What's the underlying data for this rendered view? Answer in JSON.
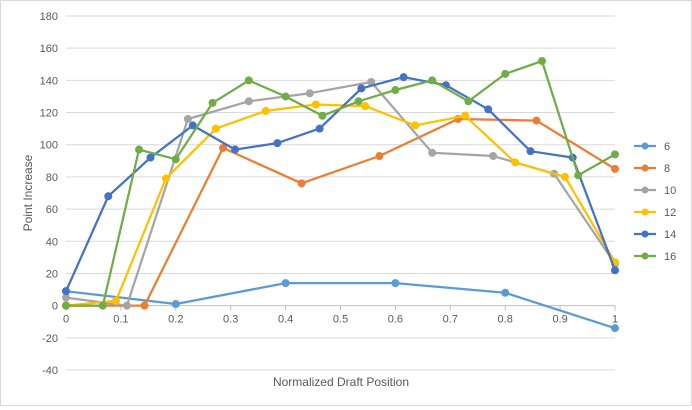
{
  "chart_data": {
    "type": "line",
    "title": "",
    "xlabel": "Normalized Draft Position",
    "ylabel": "Point Increase",
    "xlim": [
      0,
      1
    ],
    "ylim": [
      -40,
      180
    ],
    "x_ticks": [
      0,
      0.1,
      0.2,
      0.3,
      0.4,
      0.5,
      0.6,
      0.7,
      0.8,
      0.9,
      1
    ],
    "x_tick_labels": [
      "0",
      "0.1",
      "0.2",
      "0.3",
      "0.4",
      "0.5",
      "0.6",
      "0.7",
      "0.8",
      "0.9",
      "1"
    ],
    "y_ticks": [
      -40,
      -20,
      0,
      20,
      40,
      60,
      80,
      100,
      120,
      140,
      160,
      180
    ],
    "y_tick_labels": [
      "-40",
      "-20",
      "0",
      "20",
      "40",
      "60",
      "80",
      "100",
      "120",
      "140",
      "160",
      "180"
    ],
    "grid": "horizontal",
    "legend_position": "right",
    "series": [
      {
        "name": "6",
        "color": "#5B9BD5",
        "x": [
          0,
          0.2,
          0.4,
          0.6,
          0.8,
          1
        ],
        "y": [
          9,
          1,
          14,
          14,
          8,
          -14
        ]
      },
      {
        "name": "8",
        "color": "#ED7D31",
        "x": [
          0,
          0.143,
          0.286,
          0.429,
          0.571,
          0.714,
          0.857,
          1
        ],
        "y": [
          0,
          0,
          98,
          76,
          93,
          116,
          115,
          85
        ]
      },
      {
        "name": "10",
        "color": "#A5A5A5",
        "x": [
          0,
          0.111,
          0.222,
          0.333,
          0.444,
          0.556,
          0.667,
          0.778,
          0.889,
          1
        ],
        "y": [
          5,
          0,
          116,
          127,
          132,
          139,
          95,
          93,
          82,
          26
        ]
      },
      {
        "name": "12",
        "color": "#FFC000",
        "x": [
          0,
          0.091,
          0.182,
          0.273,
          0.364,
          0.455,
          0.545,
          0.636,
          0.727,
          0.818,
          0.909,
          1
        ],
        "y": [
          0,
          3,
          79,
          110,
          121,
          125,
          124,
          112,
          118,
          89,
          80,
          27
        ]
      },
      {
        "name": "14",
        "color": "#4472C4",
        "x": [
          0,
          0.077,
          0.154,
          0.231,
          0.308,
          0.385,
          0.462,
          0.538,
          0.615,
          0.692,
          0.769,
          0.846,
          0.923,
          1
        ],
        "y": [
          9,
          68,
          92,
          112,
          97,
          101,
          110,
          135,
          142,
          137,
          122,
          96,
          92,
          22
        ]
      },
      {
        "name": "16",
        "color": "#70AD47",
        "x": [
          0,
          0.067,
          0.133,
          0.2,
          0.267,
          0.333,
          0.4,
          0.467,
          0.533,
          0.6,
          0.667,
          0.733,
          0.8,
          0.867,
          0.933,
          1
        ],
        "y": [
          0,
          0,
          97,
          91,
          126,
          140,
          130,
          118,
          127,
          134,
          140,
          127,
          144,
          152,
          81,
          94
        ]
      }
    ]
  }
}
